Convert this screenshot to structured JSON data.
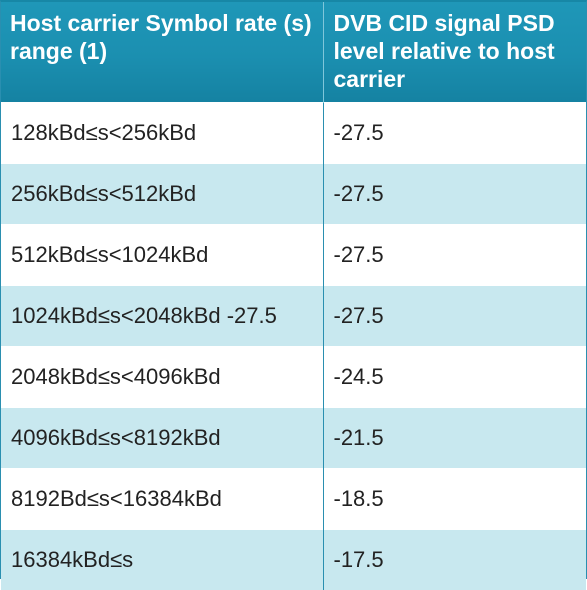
{
  "table": {
    "headers": [
      "Host carrier Symbol rate (s) range (1)",
      "DVB CID signal PSD level relative to host carrier"
    ],
    "rows": [
      [
        "128kBd≤s<256kBd",
        "-27.5"
      ],
      [
        "256kBd≤s<512kBd",
        "-27.5"
      ],
      [
        "512kBd≤s<1024kBd",
        "-27.5"
      ],
      [
        "1024kBd≤s<2048kBd -27.5",
        "-27.5"
      ],
      [
        "2048kBd≤s<4096kBd",
        "-24.5"
      ],
      [
        "4096kBd≤s<8192kBd",
        "-21.5"
      ],
      [
        "8192Bd≤s<16384kBd",
        "-18.5"
      ],
      [
        "16384kBd≤s",
        "-17.5"
      ]
    ]
  },
  "colors": {
    "header_bg": "#1b8fb0",
    "header_text": "#ffffff",
    "row_alt_bg": "#c8e8ef",
    "border": "#2a8fb0"
  }
}
